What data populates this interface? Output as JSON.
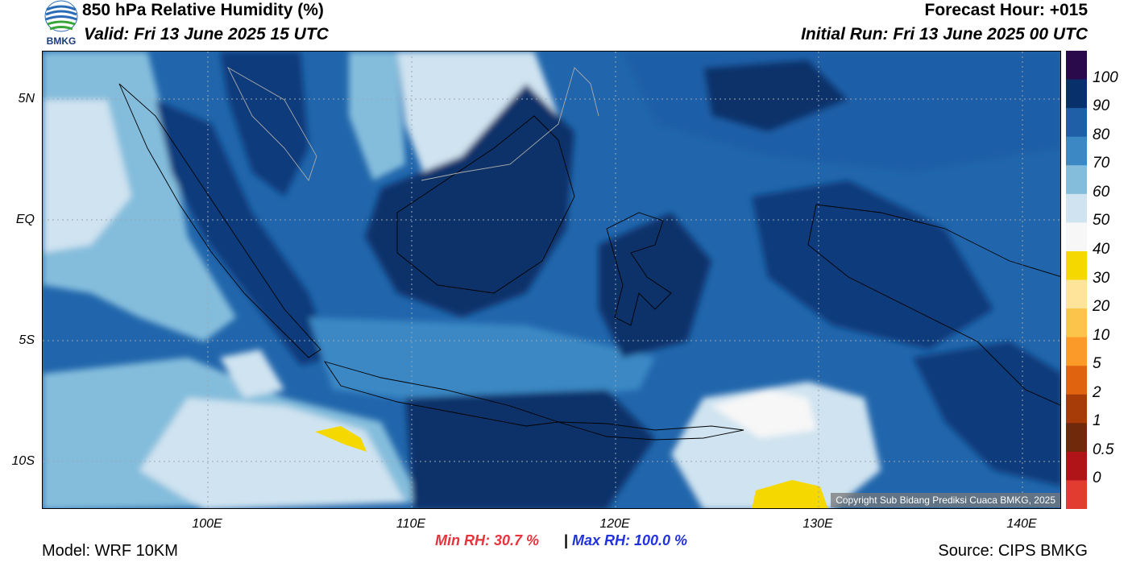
{
  "header": {
    "title": "850 hPa Relative Humidity (%)",
    "valid": "Valid: Fri 13 June 2025 15 UTC",
    "forecast_hour": "Forecast Hour: +015",
    "initial_run": "Initial Run: Fri 13 June 2025 00 UTC"
  },
  "logo": {
    "text": "BMKG",
    "icon": "bmkg-logo-icon"
  },
  "map": {
    "lat_labels": [
      "5N",
      "EQ",
      "5S",
      "10S"
    ],
    "lon_labels": [
      "100E",
      "110E",
      "120E",
      "130E",
      "140E"
    ],
    "copyright": "Copyright Sub Bidang Prediksi Cuaca BMKG, 2025"
  },
  "colorbar": {
    "labels": [
      "100",
      "90",
      "80",
      "70",
      "60",
      "50",
      "40",
      "30",
      "20",
      "10",
      "5",
      "2",
      "1",
      "0.5",
      "0"
    ],
    "colors": [
      "#2a0a4a",
      "#08306b",
      "#1f5fa8",
      "#3b88c4",
      "#84bddc",
      "#cfe3f0",
      "#f7f7f7",
      "#f5d800",
      "#fde49a",
      "#fdc44c",
      "#fb9a29",
      "#e06410",
      "#a83c08",
      "#70290a",
      "#b01418",
      "#e23c30"
    ]
  },
  "stats": {
    "min": "Min RH:  30.7 %",
    "separator": "|",
    "max": "Max RH: 100.0 %",
    "min_color": "#e8323c",
    "max_color": "#2233dd"
  },
  "footer": {
    "model": "Model: WRF 10KM",
    "source": "Source: CIPS BMKG"
  }
}
